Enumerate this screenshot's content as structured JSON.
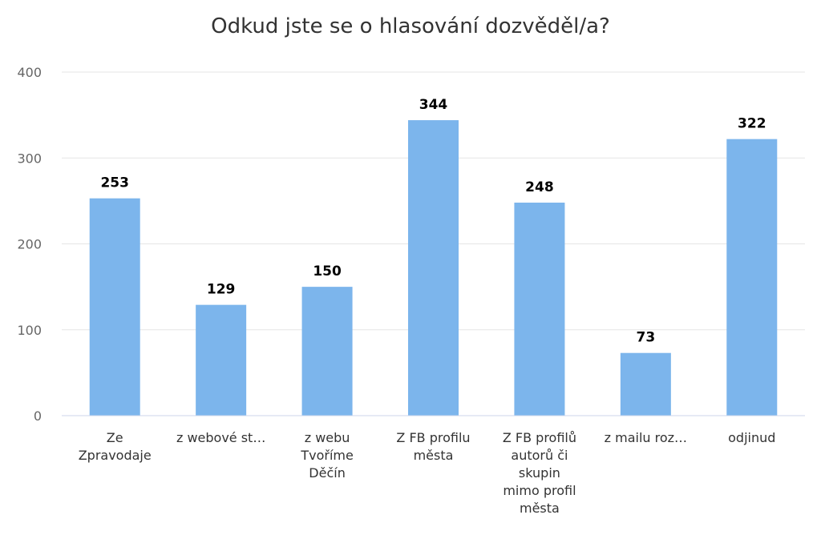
{
  "chart_data": {
    "type": "bar",
    "title": "Odkud jste se o hlasování dozvěděl/a?",
    "categories": [
      "Ze Zpravodaje",
      "z webové st…",
      "z webu Tvoříme Děčín",
      "Z FB profilu města",
      "Z FB profilů autorů či skupin mimo profil města",
      "z mailu roz…",
      "odjinud"
    ],
    "category_lines": [
      [
        "Ze",
        "Zpravodaje"
      ],
      [
        "z webové st…"
      ],
      [
        "z webu",
        "Tvoříme",
        "Děčín"
      ],
      [
        "Z FB profilu",
        "města"
      ],
      [
        "Z FB profilů",
        "autorů či",
        "skupin",
        "mimo profil",
        "města"
      ],
      [
        "z mailu roz…"
      ],
      [
        "odjinud"
      ]
    ],
    "values": [
      253,
      129,
      150,
      344,
      248,
      73,
      322
    ],
    "ylim": [
      0,
      400
    ],
    "yticks": [
      "0",
      "100",
      "200",
      "300",
      "400"
    ],
    "xlabel": "",
    "ylabel": "",
    "grid": true,
    "bar_color": "#7cb5ec"
  }
}
